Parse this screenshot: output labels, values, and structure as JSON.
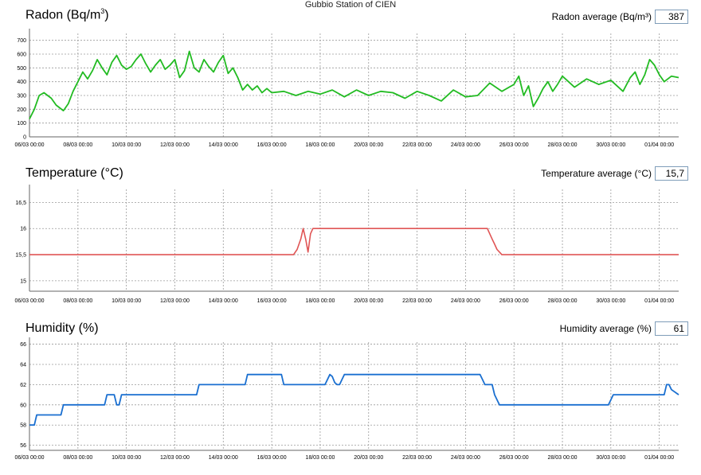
{
  "title": "Gubbio Station of CIEN",
  "panels": [
    {
      "label_main": "Radon (Bq/m",
      "label_sup": "3",
      "label_end": ")",
      "avg_label": "Radon average (Bq/m³)",
      "avg_value": "387"
    },
    {
      "label_main": "Temperature (°C)",
      "label_sup": "",
      "label_end": "",
      "avg_label": "Temperature average (°C)",
      "avg_value": "15,7"
    },
    {
      "label_main": "Humidity (%)",
      "label_sup": "",
      "label_end": "",
      "avg_label": "Humidity average (%)",
      "avg_value": "61"
    }
  ],
  "chart_data": [
    {
      "type": "line",
      "title": "Radon (Bq/m3)",
      "color": "#22bb22",
      "x_ticks": [
        "06/03 00:00",
        "08/03 00:00",
        "10/03 00:00",
        "12/03 00:00",
        "14/03 00:00",
        "16/03 00:00",
        "18/03 00:00",
        "20/03 00:00",
        "22/03 00:00",
        "24/03 00:00",
        "26/03 00:00",
        "28/03 00:00",
        "30/03 00:00",
        "01/04 00:00"
      ],
      "y_ticks": [
        "0",
        "100",
        "200",
        "300",
        "400",
        "500",
        "600",
        "700"
      ],
      "ylim": [
        0,
        750
      ],
      "xlim_days": [
        0,
        26.8
      ],
      "grid": true,
      "x_days": [
        0,
        0.2,
        0.4,
        0.6,
        0.9,
        1.1,
        1.4,
        1.6,
        1.8,
        2.0,
        2.2,
        2.4,
        2.6,
        2.8,
        3.0,
        3.2,
        3.4,
        3.6,
        3.8,
        4.0,
        4.2,
        4.4,
        4.6,
        4.8,
        5.0,
        5.2,
        5.4,
        5.6,
        5.8,
        6.0,
        6.2,
        6.4,
        6.6,
        6.8,
        7.0,
        7.2,
        7.4,
        7.6,
        7.8,
        8.0,
        8.2,
        8.4,
        8.6,
        8.8,
        9.0,
        9.2,
        9.4,
        9.6,
        9.8,
        10.0,
        10.5,
        11,
        11.5,
        12,
        12.5,
        13,
        13.5,
        14,
        14.5,
        15,
        15.5,
        16,
        16.5,
        17,
        17.5,
        18,
        18.5,
        19,
        19.5,
        20,
        20.2,
        20.4,
        20.6,
        20.8,
        21.0,
        21.2,
        21.4,
        21.6,
        21.8,
        22.0,
        22.5,
        23,
        23.5,
        24,
        24.5,
        24.8,
        25.0,
        25.2,
        25.4,
        25.6,
        25.8,
        26.0,
        26.2,
        26.5,
        26.8
      ],
      "values": [
        130,
        200,
        300,
        320,
        280,
        230,
        190,
        240,
        330,
        400,
        470,
        420,
        480,
        560,
        500,
        450,
        540,
        590,
        520,
        490,
        510,
        560,
        600,
        530,
        470,
        520,
        560,
        490,
        520,
        560,
        430,
        480,
        620,
        500,
        470,
        560,
        510,
        470,
        540,
        590,
        460,
        500,
        430,
        340,
        380,
        340,
        370,
        320,
        350,
        320,
        330,
        300,
        330,
        310,
        340,
        290,
        340,
        300,
        330,
        320,
        280,
        330,
        300,
        260,
        340,
        290,
        300,
        390,
        330,
        380,
        440,
        300,
        370,
        220,
        280,
        350,
        400,
        330,
        380,
        440,
        360,
        420,
        380,
        410,
        330,
        430,
        470,
        380,
        450,
        560,
        520,
        450,
        400,
        440,
        430
      ]
    },
    {
      "type": "line",
      "title": "Temperature (°C)",
      "color": "#e05555",
      "x_ticks": [
        "06/03 00:00",
        "08/03 00:00",
        "10/03 00:00",
        "12/03 00:00",
        "14/03 00:00",
        "16/03 00:00",
        "18/03 00:00",
        "20/03 00:00",
        "22/03 00:00",
        "24/03 00:00",
        "26/03 00:00",
        "28/03 00:00",
        "30/03 00:00",
        "01/04 00:00"
      ],
      "y_ticks": [
        "15",
        "15,5",
        "16",
        "16,5"
      ],
      "ylim": [
        14.8,
        16.75
      ],
      "xlim_days": [
        0,
        26.8
      ],
      "grid": true,
      "x_days": [
        0,
        10.9,
        11.05,
        11.2,
        11.3,
        11.4,
        11.5,
        11.6,
        11.7,
        11.8,
        11.9,
        12.0,
        12.1,
        18.9,
        19.0,
        19.1,
        19.2,
        19.3,
        19.4,
        19.5,
        26.8
      ],
      "values": [
        15.5,
        15.5,
        15.6,
        15.8,
        16.0,
        15.8,
        15.55,
        15.9,
        16.0,
        16.0,
        16.0,
        16.0,
        16.0,
        16.0,
        15.9,
        15.8,
        15.7,
        15.6,
        15.55,
        15.5,
        15.5
      ]
    },
    {
      "type": "line",
      "title": "Humidity (%)",
      "color": "#1a6fd0",
      "x_ticks": [
        "06/03 00:00",
        "08/03 00:00",
        "10/03 00:00",
        "12/03 00:00",
        "14/03 00:00",
        "16/03 00:00",
        "18/03 00:00",
        "20/03 00:00",
        "22/03 00:00",
        "24/03 00:00",
        "26/03 00:00",
        "28/03 00:00",
        "30/03 00:00",
        "01/04 00:00"
      ],
      "y_ticks": [
        "56",
        "58",
        "60",
        "62",
        "64",
        "66"
      ],
      "ylim": [
        55.5,
        66.2
      ],
      "xlim_days": [
        0,
        26.8
      ],
      "grid": true,
      "x_days": [
        0,
        0.2,
        0.3,
        1.2,
        1.3,
        1.4,
        3.0,
        3.1,
        3.2,
        3.5,
        3.6,
        3.7,
        3.8,
        3.9,
        4.0,
        6.8,
        6.9,
        7.0,
        8.8,
        8.9,
        9.0,
        10.3,
        10.4,
        10.5,
        12.0,
        12.1,
        12.2,
        12.4,
        12.5,
        12.6,
        12.7,
        12.8,
        12.9,
        13.0,
        13.1,
        18.6,
        18.7,
        18.8,
        19.1,
        19.2,
        19.3,
        19.4,
        23.9,
        24.0,
        24.1,
        26.0,
        26.2,
        26.3,
        26.4,
        26.5,
        26.8
      ],
      "values": [
        58,
        58,
        59,
        59,
        59,
        60,
        60,
        60,
        61,
        61,
        60,
        60,
        61,
        61,
        61,
        61,
        61,
        62,
        62,
        62,
        63,
        63,
        63,
        62,
        62,
        62,
        62,
        63,
        62.8,
        62.2,
        62,
        62,
        62.5,
        63,
        63,
        63,
        62.5,
        62,
        62,
        61,
        60.5,
        60,
        60,
        60.5,
        61,
        61,
        61,
        62,
        62,
        61.5,
        61
      ]
    }
  ]
}
